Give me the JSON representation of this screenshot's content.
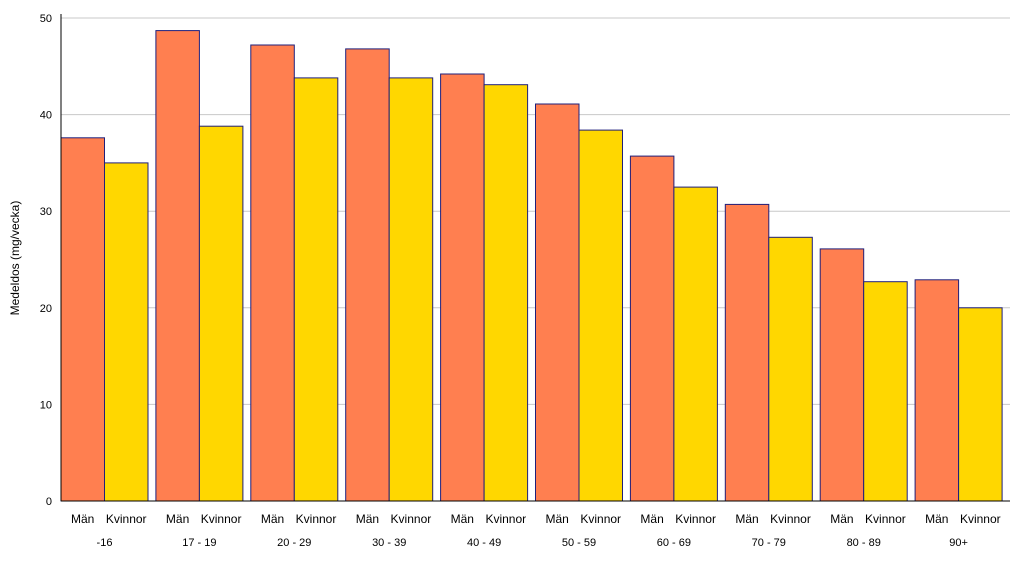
{
  "chart_data": {
    "type": "bar",
    "ylabel": "Medeldos (mg/vecka)",
    "ylim": [
      0,
      50
    ],
    "yticks": [
      0,
      10,
      20,
      30,
      40,
      50
    ],
    "grid": true,
    "categories": [
      "-16",
      "17 - 19",
      "20 - 29",
      "30 - 39",
      "40 - 49",
      "50 - 59",
      "60 - 69",
      "70 - 79",
      "80 - 89",
      "90+"
    ],
    "series": [
      {
        "name": "Män",
        "color": "#ff7f50",
        "values": [
          37.6,
          48.7,
          47.2,
          46.8,
          44.2,
          41.1,
          35.7,
          30.7,
          26.1,
          22.9
        ]
      },
      {
        "name": "Kvinnor",
        "color": "#ffd700",
        "values": [
          35.0,
          38.8,
          43.8,
          43.8,
          43.1,
          38.4,
          32.5,
          27.3,
          22.7,
          20.0
        ]
      }
    ]
  }
}
